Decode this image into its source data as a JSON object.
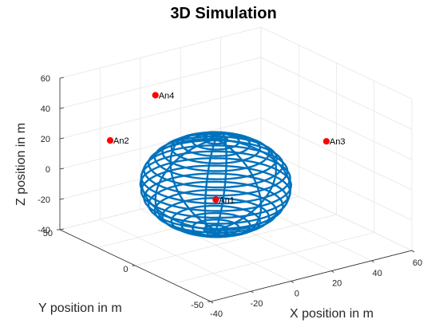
{
  "chart_data": {
    "type": "scatter",
    "title": "3D Simulation",
    "xlabel": "X position in m",
    "ylabel": "Y position in m",
    "zlabel": "Z position in m",
    "xlim": [
      -40,
      60
    ],
    "ylim": [
      -50,
      50
    ],
    "zlim": [
      -40,
      60
    ],
    "xticks": [
      "-40",
      "-20",
      "0",
      "20",
      "40",
      "60"
    ],
    "yticks": [
      "-50",
      "0",
      "50"
    ],
    "zticks": [
      "-40",
      "-20",
      "0",
      "20",
      "40",
      "60"
    ],
    "grid": true,
    "sphere": {
      "center": [
        0,
        0,
        0
      ],
      "radius": 30,
      "color": "#0072BD"
    },
    "anchors": [
      {
        "name": "An1",
        "x": 0,
        "y": 0,
        "z": -10
      },
      {
        "name": "An2",
        "x": -30,
        "y": 30,
        "z": 25
      },
      {
        "name": "An3",
        "x": 55,
        "y": 0,
        "z": 10
      },
      {
        "name": "An4",
        "x": 0,
        "y": 40,
        "z": 40
      }
    ],
    "anchor_color": "#FF0000"
  }
}
